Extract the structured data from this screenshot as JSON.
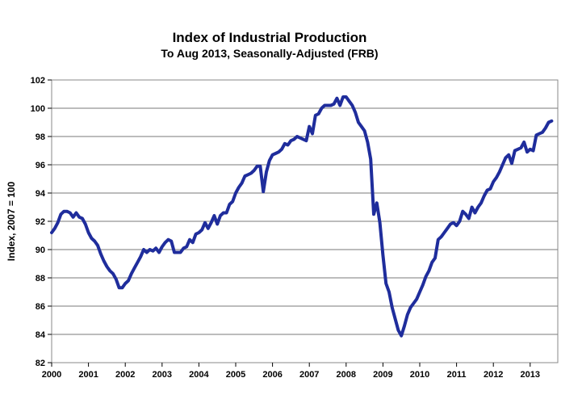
{
  "chart_data": {
    "type": "line",
    "title": "Index of Industrial Production",
    "subtitle": "To Aug 2013, Seasonally-Adjusted (FRB)",
    "xlabel": "",
    "ylabel": "Index, 2007 = 100",
    "xlim": [
      2000,
      2013.75
    ],
    "ylim": [
      82,
      102
    ],
    "ytick_step": 2,
    "x_ticks": [
      "2000",
      "2001",
      "2002",
      "2003",
      "2004",
      "2005",
      "2006",
      "2007",
      "2008",
      "2009",
      "2010",
      "2011",
      "2012",
      "2013"
    ],
    "y_ticks": [
      "82",
      "84",
      "86",
      "88",
      "90",
      "92",
      "94",
      "96",
      "98",
      "100",
      "102"
    ],
    "grid": "horizontal",
    "legend": "none",
    "line_color": "#1f2d9c",
    "series": [
      {
        "x": [
          2000.0,
          2000.083,
          2000.167,
          2000.25,
          2000.333,
          2000.417,
          2000.5,
          2000.583,
          2000.667,
          2000.75,
          2000.833,
          2000.917,
          2001.0,
          2001.083,
          2001.167,
          2001.25,
          2001.333,
          2001.417,
          2001.5,
          2001.583,
          2001.667,
          2001.75,
          2001.833,
          2001.917,
          2002.0,
          2002.083,
          2002.167,
          2002.25,
          2002.333,
          2002.417,
          2002.5,
          2002.583,
          2002.667,
          2002.75,
          2002.833,
          2002.917,
          2003.0,
          2003.083,
          2003.167,
          2003.25,
          2003.333,
          2003.417,
          2003.5,
          2003.583,
          2003.667,
          2003.75,
          2003.833,
          2003.917,
          2004.0,
          2004.083,
          2004.167,
          2004.25,
          2004.333,
          2004.417,
          2004.5,
          2004.583,
          2004.667,
          2004.75,
          2004.833,
          2004.917,
          2005.0,
          2005.083,
          2005.167,
          2005.25,
          2005.333,
          2005.417,
          2005.5,
          2005.583,
          2005.667,
          2005.75,
          2005.833,
          2005.917,
          2006.0,
          2006.083,
          2006.167,
          2006.25,
          2006.333,
          2006.417,
          2006.5,
          2006.583,
          2006.667,
          2006.75,
          2006.833,
          2006.917,
          2007.0,
          2007.083,
          2007.167,
          2007.25,
          2007.333,
          2007.417,
          2007.5,
          2007.583,
          2007.667,
          2007.75,
          2007.833,
          2007.917,
          2008.0,
          2008.083,
          2008.167,
          2008.25,
          2008.333,
          2008.417,
          2008.5,
          2008.583,
          2008.667,
          2008.75,
          2008.833,
          2008.917,
          2009.0,
          2009.083,
          2009.167,
          2009.25,
          2009.333,
          2009.417,
          2009.5,
          2009.583,
          2009.667,
          2009.75,
          2009.833,
          2009.917,
          2010.0,
          2010.083,
          2010.167,
          2010.25,
          2010.333,
          2010.417,
          2010.5,
          2010.583,
          2010.667,
          2010.75,
          2010.833,
          2010.917,
          2011.0,
          2011.083,
          2011.167,
          2011.25,
          2011.333,
          2011.417,
          2011.5,
          2011.583,
          2011.667,
          2011.75,
          2011.833,
          2011.917,
          2012.0,
          2012.083,
          2012.167,
          2012.25,
          2012.333,
          2012.417,
          2012.5,
          2012.583,
          2012.667,
          2012.75,
          2012.833,
          2012.917,
          2013.0,
          2013.083,
          2013.167,
          2013.25,
          2013.333,
          2013.417,
          2013.5,
          2013.583
        ],
        "values": [
          91.2,
          91.5,
          91.9,
          92.5,
          92.7,
          92.7,
          92.6,
          92.3,
          92.6,
          92.3,
          92.2,
          91.8,
          91.2,
          90.8,
          90.6,
          90.3,
          89.7,
          89.2,
          88.8,
          88.5,
          88.3,
          87.9,
          87.3,
          87.3,
          87.6,
          87.8,
          88.3,
          88.7,
          89.1,
          89.5,
          90.0,
          89.8,
          90.0,
          89.9,
          90.1,
          89.8,
          90.2,
          90.5,
          90.7,
          90.6,
          89.8,
          89.8,
          89.8,
          90.1,
          90.2,
          90.7,
          90.5,
          91.1,
          91.2,
          91.4,
          91.9,
          91.5,
          91.9,
          92.4,
          91.8,
          92.4,
          92.6,
          92.6,
          93.2,
          93.4,
          94.0,
          94.4,
          94.7,
          95.2,
          95.3,
          95.4,
          95.6,
          95.9,
          95.9,
          94.1,
          95.5,
          96.3,
          96.7,
          96.8,
          96.9,
          97.1,
          97.5,
          97.4,
          97.7,
          97.8,
          98.0,
          97.9,
          97.8,
          97.7,
          98.7,
          98.2,
          99.5,
          99.6,
          100.0,
          100.2,
          100.2,
          100.2,
          100.3,
          100.7,
          100.2,
          100.8,
          100.8,
          100.5,
          100.2,
          99.7,
          99.0,
          98.7,
          98.4,
          97.6,
          96.4,
          92.5,
          93.3,
          91.9,
          89.6,
          87.6,
          87.0,
          85.9,
          85.1,
          84.3,
          83.9,
          84.6,
          85.4,
          85.9,
          86.2,
          86.5,
          87.0,
          87.5,
          88.1,
          88.5,
          89.1,
          89.4,
          90.7,
          90.9,
          91.2,
          91.5,
          91.8,
          91.9,
          91.7,
          92.0,
          92.7,
          92.5,
          92.2,
          93.0,
          92.6,
          93.0,
          93.3,
          93.8,
          94.2,
          94.3,
          94.8,
          95.1,
          95.5,
          96.0,
          96.5,
          96.7,
          96.1,
          97.0,
          97.1,
          97.2,
          97.6,
          96.9,
          97.1,
          97.0,
          98.1,
          98.2,
          98.3,
          98.6,
          99.0,
          99.1
        ]
      }
    ]
  }
}
